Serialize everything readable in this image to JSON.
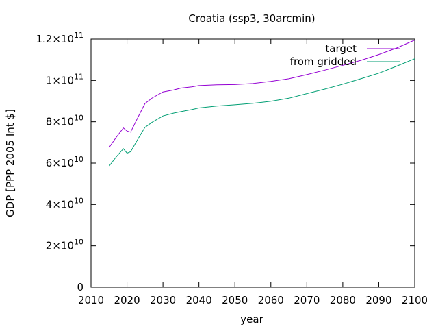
{
  "chart_data": {
    "type": "line",
    "title": "Croatia (ssp3, 30arcmin)",
    "xlabel": "year",
    "ylabel": "GDP [PPP 2005 Int $]",
    "xlim": [
      2010,
      2100
    ],
    "ylim": [
      0,
      120000000000
    ],
    "x_ticks": [
      2010,
      2020,
      2030,
      2040,
      2050,
      2060,
      2070,
      2080,
      2090,
      2100
    ],
    "y_ticks": [
      {
        "value": 0,
        "mantissa": "0",
        "exp": ""
      },
      {
        "value": 20000000000,
        "mantissa": "2×10",
        "exp": "10"
      },
      {
        "value": 40000000000,
        "mantissa": "4×10",
        "exp": "10"
      },
      {
        "value": 60000000000,
        "mantissa": "6×10",
        "exp": "10"
      },
      {
        "value": 80000000000,
        "mantissa": "8×10",
        "exp": "10"
      },
      {
        "value": 100000000000,
        "mantissa": "1×10",
        "exp": "11"
      },
      {
        "value": 120000000000,
        "mantissa": "1.2×10",
        "exp": "11"
      }
    ],
    "legend_position": "top-right",
    "grid": false,
    "series": [
      {
        "name": "target",
        "color": "#9400d3",
        "x": [
          2015,
          2017,
          2019,
          2020,
          2021,
          2023,
          2025,
          2027,
          2030,
          2033,
          2035,
          2038,
          2040,
          2045,
          2050,
          2055,
          2060,
          2065,
          2070,
          2075,
          2080,
          2085,
          2090,
          2095,
          2100
        ],
        "y": [
          67500000000,
          72500000000,
          77000000000,
          75500000000,
          75000000000,
          82000000000,
          88800000000,
          91500000000,
          94400000000,
          95400000000,
          96300000000,
          96900000000,
          97500000000,
          97900000000,
          98000000000,
          98500000000,
          99500000000,
          100800000000,
          102800000000,
          105000000000,
          107300000000,
          109700000000,
          112500000000,
          115700000000,
          119500000000
        ]
      },
      {
        "name": "from gridded",
        "color": "#009e73",
        "x": [
          2015,
          2017,
          2019,
          2020,
          2021,
          2023,
          2025,
          2027,
          2030,
          2033,
          2035,
          2038,
          2040,
          2045,
          2050,
          2055,
          2060,
          2065,
          2070,
          2075,
          2080,
          2085,
          2090,
          2095,
          2100
        ],
        "y": [
          58500000000,
          63000000000,
          67000000000,
          64800000000,
          65500000000,
          71500000000,
          77300000000,
          79800000000,
          82800000000,
          84200000000,
          84900000000,
          85900000000,
          86700000000,
          87600000000,
          88200000000,
          88900000000,
          89900000000,
          91400000000,
          93600000000,
          95800000000,
          98200000000,
          100800000000,
          103500000000,
          106900000000,
          110500000000
        ]
      }
    ]
  }
}
